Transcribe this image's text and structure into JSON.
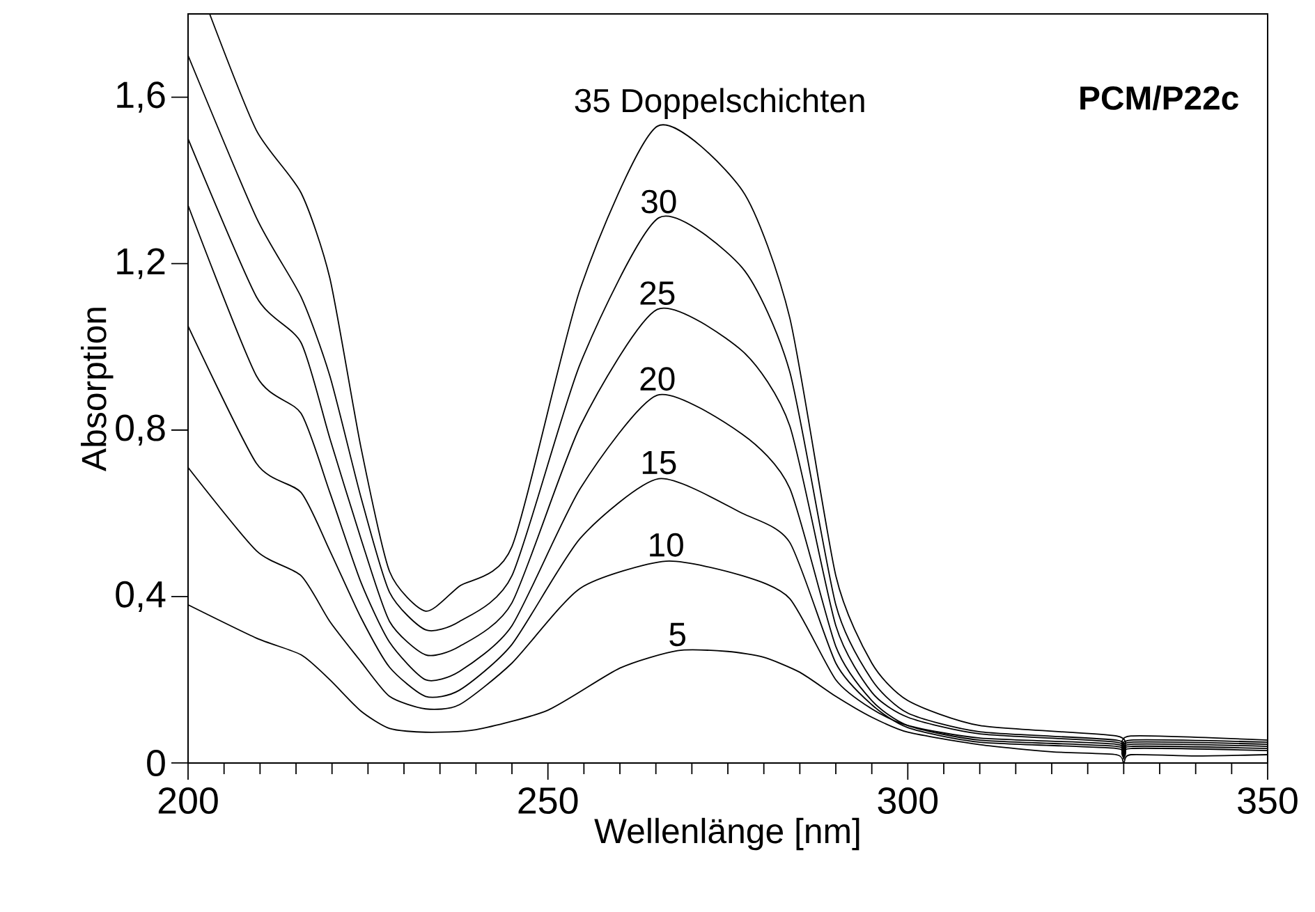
{
  "chart_data": {
    "type": "line",
    "xlabel": "Wellenlänge [nm]",
    "ylabel": "Absorption",
    "annotations": [
      "PCM/P22c"
    ],
    "xlim": [
      200,
      350
    ],
    "xticks": [
      200,
      250,
      300,
      350
    ],
    "ylim": [
      0,
      1.8
    ],
    "yticks": [
      0,
      {
        "value": 0.4,
        "label": "0,4"
      },
      {
        "value": 0.8,
        "label": "0,8"
      },
      {
        "value": 1.2,
        "label": "1,2"
      },
      {
        "value": 1.6,
        "label": "1,6"
      }
    ],
    "grid": false,
    "marker": "none",
    "line_style": "solid",
    "series": [
      {
        "name": "35 Doppelschichten",
        "color": "#000000",
        "x": [
          203,
          209.5,
          215.7,
          219.7,
          224,
          228,
          233,
          237.7,
          245,
          254.5,
          265.2,
          277,
          283.6,
          290,
          295,
          300,
          310,
          329,
          330,
          331,
          350
        ],
        "values": [
          1.8,
          1.52,
          1.37,
          1.165,
          0.76,
          0.46,
          0.365,
          0.425,
          0.52,
          1.14,
          1.53,
          1.376,
          1.07,
          0.45,
          0.24,
          0.15,
          0.09,
          0.065,
          0.03,
          0.065,
          0.055
        ]
      },
      {
        "name": "30",
        "color": "#000000",
        "x": [
          200,
          209.5,
          215.7,
          219.7,
          224,
          228,
          233,
          237.7,
          245,
          254.5,
          265.4,
          277,
          283.6,
          290,
          295,
          300,
          310,
          329,
          330,
          331,
          350
        ],
        "values": [
          1.7,
          1.31,
          1.12,
          0.93,
          0.64,
          0.41,
          0.32,
          0.34,
          0.45,
          0.96,
          1.31,
          1.19,
          0.94,
          0.38,
          0.2,
          0.12,
          0.075,
          0.055,
          0.025,
          0.055,
          0.05
        ]
      },
      {
        "name": "25",
        "color": "#000000",
        "x": [
          200,
          209.5,
          215.7,
          219.7,
          224,
          228,
          233,
          237.7,
          245,
          254.5,
          265.2,
          277,
          283.6,
          290,
          295,
          300,
          310,
          329,
          330,
          331,
          350
        ],
        "values": [
          1.5,
          1.12,
          1.01,
          0.78,
          0.54,
          0.34,
          0.26,
          0.28,
          0.385,
          0.81,
          1.09,
          0.99,
          0.81,
          0.33,
          0.17,
          0.11,
          0.07,
          0.05,
          0.02,
          0.05,
          0.045
        ]
      },
      {
        "name": "20",
        "color": "#000000",
        "x": [
          200,
          209.5,
          215.7,
          219.7,
          224,
          228,
          233,
          237.7,
          245,
          254.5,
          265.2,
          277,
          283.6,
          290,
          295,
          300,
          310,
          329,
          330,
          331,
          350
        ],
        "values": [
          1.34,
          0.93,
          0.84,
          0.65,
          0.435,
          0.29,
          0.2,
          0.22,
          0.33,
          0.66,
          0.884,
          0.79,
          0.66,
          0.28,
          0.15,
          0.09,
          0.055,
          0.04,
          0.015,
          0.04,
          0.035
        ]
      },
      {
        "name": "15",
        "color": "#000000",
        "x": [
          200,
          209.5,
          215.7,
          219.7,
          224,
          228,
          233,
          237.7,
          245,
          254.5,
          265.4,
          277,
          283.6,
          290,
          295,
          300,
          310,
          329,
          330,
          331,
          350
        ],
        "values": [
          1.05,
          0.72,
          0.65,
          0.51,
          0.35,
          0.23,
          0.16,
          0.175,
          0.285,
          0.54,
          0.683,
          0.6,
          0.53,
          0.24,
          0.14,
          0.085,
          0.05,
          0.035,
          0.01,
          0.035,
          0.03
        ]
      },
      {
        "name": "10",
        "color": "#000000",
        "x": [
          200,
          209.5,
          215.7,
          219.7,
          224,
          228,
          233,
          237.7,
          245,
          254.5,
          266.4,
          277,
          283.6,
          290,
          295,
          300,
          310,
          329,
          330,
          331,
          350
        ],
        "values": [
          0.71,
          0.51,
          0.45,
          0.34,
          0.244,
          0.16,
          0.13,
          0.14,
          0.24,
          0.42,
          0.485,
          0.45,
          0.395,
          0.2,
          0.13,
          0.09,
          0.06,
          0.045,
          0.015,
          0.045,
          0.04
        ]
      },
      {
        "name": "5",
        "color": "#000000",
        "x": [
          200,
          209.5,
          215.7,
          219.7,
          224,
          228,
          233,
          240,
          250,
          260,
          268,
          275,
          280,
          285,
          290,
          295,
          300,
          310,
          320,
          329,
          330,
          331,
          340,
          350
        ],
        "values": [
          0.38,
          0.3,
          0.26,
          0.2,
          0.125,
          0.083,
          0.074,
          0.08,
          0.127,
          0.228,
          0.27,
          0.268,
          0.254,
          0.218,
          0.16,
          0.11,
          0.074,
          0.044,
          0.027,
          0.02,
          0.0,
          0.02,
          0.017,
          0.02
        ]
      }
    ]
  }
}
